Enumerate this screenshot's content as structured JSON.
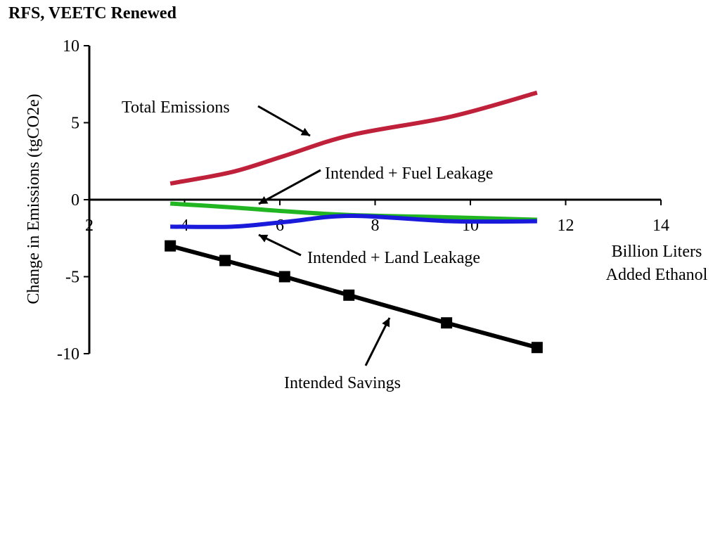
{
  "chart_data": {
    "type": "line",
    "title": "RFS, VEETC Renewed",
    "ylabel": "Change in Emissions (tgCO2e)",
    "xlabel_lines": [
      "Billion Liters",
      "Added Ethanol"
    ],
    "xlim": [
      2,
      14
    ],
    "ylim": [
      -10,
      10
    ],
    "xticks": [
      "2",
      "4",
      "6",
      "8",
      "10",
      "12",
      "14"
    ],
    "yticks": [
      "10",
      "5",
      "0",
      "-5",
      "-10"
    ],
    "grid": false,
    "series": [
      {
        "name": "Total Emissions",
        "color": "#c0213a",
        "marker": "none",
        "x": [
          3.7,
          5.0,
          6.1,
          7.5,
          9.6,
          11.4
        ],
        "y": [
          1.05,
          1.8,
          2.85,
          4.2,
          5.4,
          6.95
        ]
      },
      {
        "name": "Intended + Fuel Leakage",
        "color": "#22b522",
        "marker": "none",
        "x": [
          3.7,
          5.0,
          6.1,
          7.5,
          9.6,
          11.4
        ],
        "y": [
          -0.25,
          -0.5,
          -0.75,
          -1.0,
          -1.15,
          -1.3
        ]
      },
      {
        "name": "Intended + Land Leakage",
        "color": "#1a1adb",
        "marker": "none",
        "x": [
          3.7,
          5.0,
          6.1,
          7.5,
          9.6,
          11.4
        ],
        "y": [
          -1.75,
          -1.75,
          -1.45,
          -1.05,
          -1.4,
          -1.4
        ]
      },
      {
        "name": "Intended Savings",
        "color": "#000000",
        "marker": "square",
        "x": [
          3.7,
          4.85,
          6.1,
          7.45,
          9.5,
          11.4
        ],
        "y": [
          -3.0,
          -3.95,
          -5.0,
          -6.2,
          -8.0,
          -9.6
        ]
      }
    ],
    "annotations": [
      {
        "text": "Total Emissions",
        "series": "Total Emissions"
      },
      {
        "text": "Intended + Fuel Leakage",
        "series": "Intended + Fuel Leakage"
      },
      {
        "text": "Intended + Land Leakage",
        "series": "Intended + Land Leakage"
      },
      {
        "text": "Intended Savings",
        "series": "Intended Savings"
      }
    ]
  }
}
